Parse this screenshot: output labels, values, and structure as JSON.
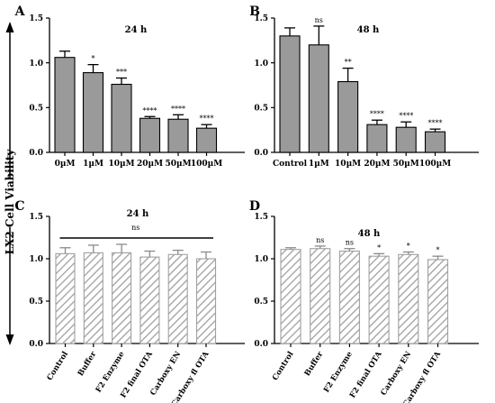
{
  "figure": {
    "y_axis_label": "LX2 Cell Viability",
    "colors": {
      "solid_bar": "#9a9a9a",
      "hatch_stroke": "#a0a0a0",
      "axis": "#000000"
    }
  },
  "chart_data": [
    {
      "panel": "A",
      "type": "bar",
      "title": "24 h",
      "fill": "solid",
      "categories": [
        "0µM",
        "1µM",
        "10µM",
        "20µM",
        "50µM",
        "100µM"
      ],
      "values": [
        1.06,
        0.89,
        0.76,
        0.38,
        0.37,
        0.27
      ],
      "errors": [
        0.07,
        0.09,
        0.07,
        0.02,
        0.05,
        0.04
      ],
      "significance": [
        "",
        "*",
        "***",
        "****",
        "****",
        "****"
      ],
      "ylim": [
        0,
        1.5
      ],
      "yticks": [
        "0.0",
        "0.5",
        "1.0",
        "1.5"
      ]
    },
    {
      "panel": "B",
      "type": "bar",
      "title": "48 h",
      "fill": "solid",
      "categories": [
        "Control",
        "1µM",
        "10µM",
        "20µM",
        "50µM",
        "100µM"
      ],
      "values": [
        1.3,
        1.2,
        0.79,
        0.31,
        0.28,
        0.23
      ],
      "errors": [
        0.09,
        0.21,
        0.15,
        0.05,
        0.06,
        0.03
      ],
      "significance": [
        "",
        "ns",
        "**",
        "****",
        "****",
        "****"
      ],
      "ylim": [
        0,
        1.5
      ],
      "yticks": [
        "0.0",
        "0.5",
        "1.0",
        "1.5"
      ]
    },
    {
      "panel": "C",
      "type": "bar",
      "title": "24 h",
      "fill": "hatched",
      "group_annotation": "ns",
      "categories": [
        "Control",
        "Buffer",
        "F2 Enzyme",
        "F2 final OTA",
        "Carboxy EN",
        "Carboxy fl OTA"
      ],
      "values": [
        1.06,
        1.07,
        1.07,
        1.02,
        1.05,
        1.0
      ],
      "errors": [
        0.07,
        0.09,
        0.1,
        0.07,
        0.05,
        0.08
      ],
      "significance": [
        "",
        "",
        "",
        "",
        "",
        ""
      ],
      "ylim": [
        0,
        1.5
      ],
      "yticks": [
        "0.0",
        "0.5",
        "1.0",
        "1.5"
      ]
    },
    {
      "panel": "D",
      "type": "bar",
      "title": "48 h",
      "fill": "hatched",
      "categories": [
        "Control",
        "Buffer",
        "F2 Enzyme",
        "F2 final OTA",
        "Carboxy EN",
        "Carboxy fl OTA"
      ],
      "values": [
        1.11,
        1.12,
        1.09,
        1.03,
        1.05,
        0.99
      ],
      "errors": [
        0.02,
        0.03,
        0.03,
        0.03,
        0.03,
        0.04
      ],
      "significance": [
        "",
        "ns",
        "ns",
        "*",
        "*",
        "*"
      ],
      "ylim": [
        0,
        1.5
      ],
      "yticks": [
        "0.0",
        "0.5",
        "1.0",
        "1.5"
      ]
    }
  ]
}
